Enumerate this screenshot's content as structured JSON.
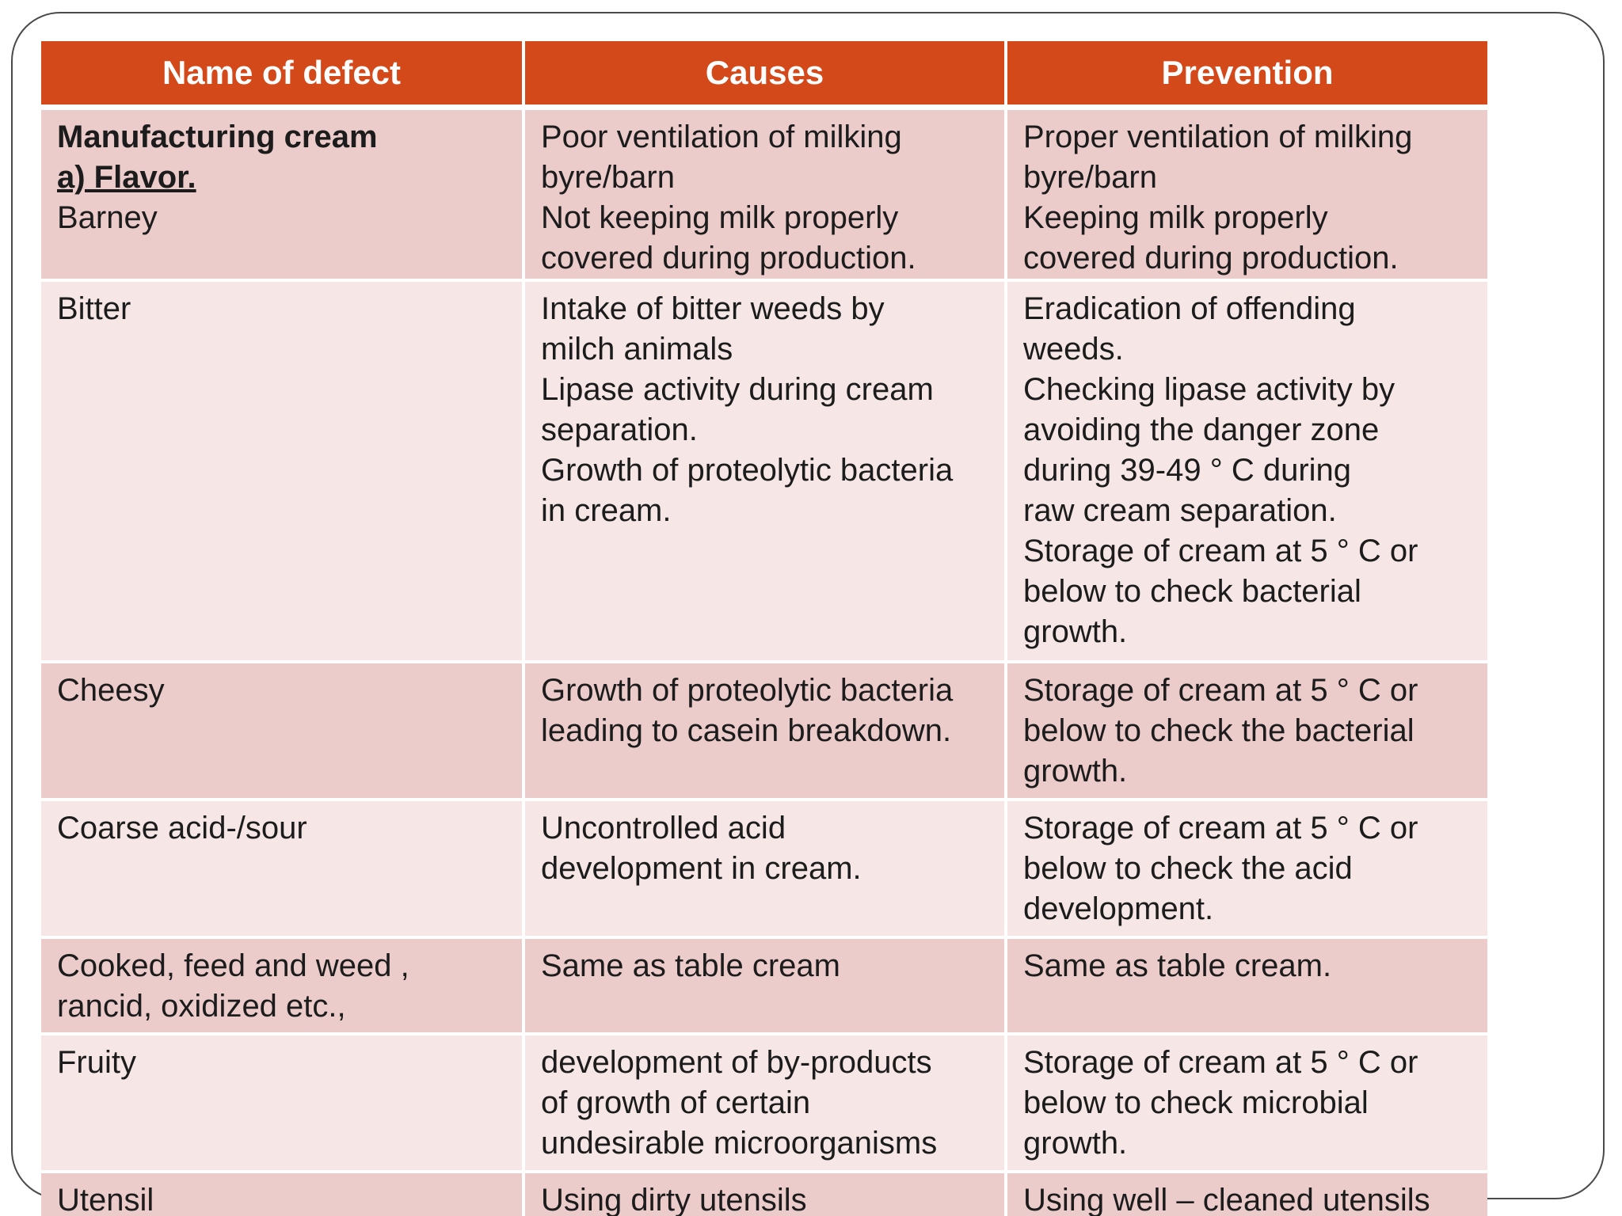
{
  "table": {
    "headers": [
      "Name of defect",
      "Causes",
      "Prevention"
    ],
    "rows": [
      {
        "defect": {
          "heading": "Manufacturing cream",
          "subheading": "a) Flavor.",
          "name": "Barney"
        },
        "causes": [
          "Poor ventilation of milking",
          "byre/barn",
          "Not keeping milk properly",
          "covered during production."
        ],
        "prevention": [
          "Proper ventilation of milking",
          "byre/barn",
          "Keeping milk properly",
          "covered during production."
        ]
      },
      {
        "defect": [
          "Bitter"
        ],
        "causes": [
          "Intake of bitter weeds by",
          "milch animals",
          "Lipase activity during cream",
          "separation.",
          "Growth of proteolytic bacteria",
          "in cream."
        ],
        "prevention": [
          "Eradication of offending",
          "weeds.",
          "Checking lipase activity by",
          "avoiding the danger zone",
          "during 39-49 ° C during",
          "raw cream separation.",
          "Storage of cream at 5 ° C or",
          "below to check bacterial",
          "growth."
        ]
      },
      {
        "defect": [
          "Cheesy"
        ],
        "causes": [
          "Growth of proteolytic bacteria",
          "leading to casein breakdown."
        ],
        "prevention": [
          "Storage of cream at 5 ° C or",
          "below to check the bacterial",
          "growth."
        ]
      },
      {
        "defect": [
          "Coarse acid-/sour"
        ],
        "causes": [
          "Uncontrolled acid",
          "development in cream."
        ],
        "prevention": [
          "Storage of cream at 5 ° C or",
          "below to check the acid",
          "development."
        ]
      },
      {
        "defect": [
          "Cooked, feed and weed ,",
          "rancid, oxidized etc.,"
        ],
        "causes": [
          "Same as table cream"
        ],
        "prevention": [
          "Same as table cream."
        ]
      },
      {
        "defect": [
          "Fruity"
        ],
        "causes": [
          "development of by-products",
          "of growth of certain",
          "undesirable microorganisms"
        ],
        "prevention": [
          "Storage of cream at 5 ° C or",
          "below to check microbial",
          "growth."
        ]
      },
      {
        "defect": [
          "Utensil"
        ],
        "causes": [
          "Using dirty utensils"
        ],
        "prevention": [
          "Using well – cleaned utensils"
        ]
      }
    ]
  },
  "colors": {
    "header_bg": "#d4491a",
    "row_dark": "#eccccb",
    "row_light": "#f6e7e6",
    "frame": "#4a4a4a"
  }
}
